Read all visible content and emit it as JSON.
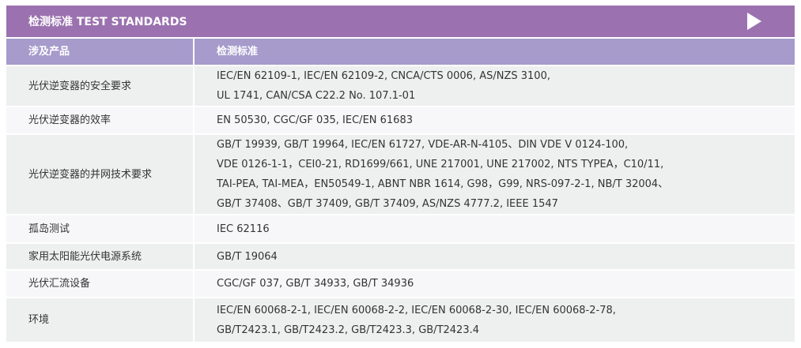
{
  "title": "检测标准 TEST STANDARDS",
  "colors": {
    "title_bg": "#9B72AF",
    "header_bg": "#A69BCB",
    "row_alt_1": "#EEF0EF",
    "row_alt_2": "#F7F6F9"
  },
  "icons": {
    "next": "triangle-right-icon"
  },
  "headers": [
    "涉及产品",
    "检测标准"
  ],
  "rows": [
    {
      "product": "光伏逆变器的安全要求",
      "lines": [
        "IEC/EN 62109-1, IEC/EN 62109-2, CNCA/CTS 0006, AS/NZS 3100,",
        "UL 1741, CAN/CSA C22.2 No. 107.1-01"
      ]
    },
    {
      "product": "光伏逆变器的效率",
      "lines": [
        "EN 50530, CGC/GF 035, IEC/EN 61683"
      ]
    },
    {
      "product": "光伏逆变器的并网技术要求",
      "lines": [
        "GB/T 19939, GB/T 19964, IEC/EN 61727, VDE-AR-N-4105、DIN VDE V 0124-100,",
        "VDE 0126-1-1，CEI0-21, RD1699/661, UNE 217001, UNE 217002, NTS TYPEA，C10/11,",
        "TAI-PEA, TAI-MEA，EN50549-1, ABNT NBR 1614, G98，G99, NRS-097-2-1, NB/T 32004、",
        "GB/T 37408、GB/T 37409, GB/T 37409, AS/NZS 4777.2, IEEE 1547"
      ]
    },
    {
      "product": "孤岛测试",
      "lines": [
        "IEC 62116"
      ]
    },
    {
      "product": "家用太阳能光伏电源系统",
      "lines": [
        "GB/T 19064"
      ]
    },
    {
      "product": "光伏汇流设备",
      "lines": [
        "CGC/GF 037, GB/T 34933, GB/T 34936"
      ]
    },
    {
      "product": "环境",
      "lines": [
        "IEC/EN 60068-2-1, IEC/EN 60068-2-2, IEC/EN 60068-2-30, IEC/EN 60068-2-78,",
        "GB/T2423.1, GB/T2423.2, GB/T2423.3, GB/T2423.4"
      ]
    }
  ]
}
